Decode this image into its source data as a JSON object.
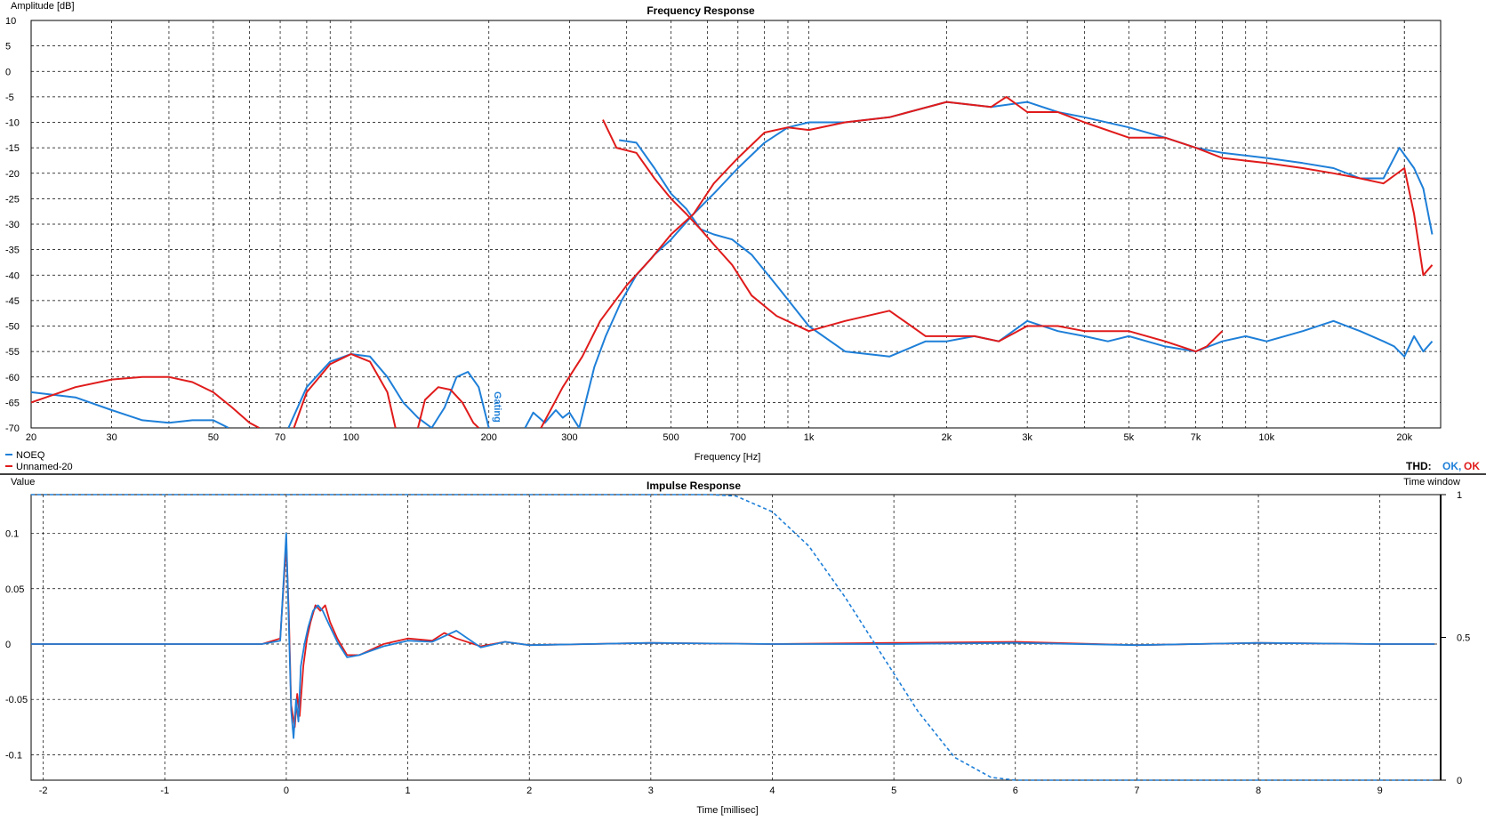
{
  "colors": {
    "noeq": "#1e7fd8",
    "unnamed": "#e01b1b",
    "grid": "#000000",
    "ok_blue": "#1e7fd8",
    "ok_red": "#e01b1b",
    "background": "#ffffff"
  },
  "chart_data": [
    {
      "type": "line",
      "title": "Frequency Response",
      "xlabel": "Frequency [Hz]",
      "ylabel": "Amplitude [dB]",
      "xscale": "log",
      "xlim": [
        20,
        24000
      ],
      "ylim": [
        -70,
        10
      ],
      "grid": true,
      "legend_position": "bottom-left",
      "xticks": [
        {
          "v": 20,
          "label": "20"
        },
        {
          "v": 30,
          "label": "30"
        },
        {
          "v": 50,
          "label": "50"
        },
        {
          "v": 70,
          "label": "70"
        },
        {
          "v": 100,
          "label": "100"
        },
        {
          "v": 200,
          "label": "200"
        },
        {
          "v": 300,
          "label": "300"
        },
        {
          "v": 500,
          "label": "500"
        },
        {
          "v": 700,
          "label": "700"
        },
        {
          "v": 1000,
          "label": "1k"
        },
        {
          "v": 2000,
          "label": "2k"
        },
        {
          "v": 3000,
          "label": "3k"
        },
        {
          "v": 5000,
          "label": "5k"
        },
        {
          "v": 7000,
          "label": "7k"
        },
        {
          "v": 10000,
          "label": "10k"
        },
        {
          "v": 20000,
          "label": "20k"
        }
      ],
      "yticks": [
        10,
        5,
        0,
        -5,
        -10,
        -15,
        -20,
        -25,
        -30,
        -35,
        -40,
        -45,
        -50,
        -55,
        -60,
        -65,
        -70
      ],
      "annotation": "Gating",
      "thd_label": "THD:",
      "thd_status": [
        "OK,",
        "OK"
      ],
      "series": [
        {
          "name": "NOEQ",
          "part": "tweeter",
          "x": [
            385,
            420,
            460,
            500,
            540,
            580,
            620,
            680,
            750,
            850,
            1000,
            1200,
            1500,
            1800,
            2000,
            2300,
            2600,
            3000,
            3500,
            4000,
            4500,
            5000,
            6000,
            7000,
            8000,
            9000,
            10000,
            12000,
            14000,
            16000,
            18000,
            19000,
            20000,
            21000,
            22000,
            23000
          ],
          "y": [
            -13.5,
            -14,
            -19,
            -24,
            -27,
            -31,
            -32,
            -33,
            -36,
            -42,
            -50,
            -55,
            -56,
            -53,
            -53,
            -52,
            -53,
            -49,
            -51,
            -52,
            -53,
            -52,
            -54,
            -55,
            -53,
            -52,
            -53,
            -51,
            -49,
            -51,
            -53,
            -54,
            -56,
            -52,
            -55,
            -53
          ]
        },
        {
          "name": "NOEQ",
          "part": "woofer-high",
          "x": [
            315,
            340,
            360,
            390,
            420,
            460,
            500,
            560,
            620,
            700,
            800,
            900,
            1000,
            1200,
            1500,
            2000,
            2500,
            3000,
            3500,
            4000,
            5000,
            6000,
            7000,
            8000,
            10000,
            12000,
            14000,
            16000,
            18000,
            19500,
            21000,
            22000,
            23000
          ],
          "y": [
            -70,
            -58,
            -52,
            -45,
            -40,
            -36,
            -33,
            -28,
            -24,
            -19,
            -14,
            -11,
            -10,
            -10,
            -9,
            -6,
            -7,
            -6,
            -8,
            -9,
            -11,
            -13,
            -15,
            -16,
            -17,
            -18,
            -19,
            -21,
            -21,
            -15,
            -19,
            -23,
            -32
          ]
        },
        {
          "name": "NOEQ",
          "part": "woofer-low",
          "x": [
            20,
            25,
            30,
            35,
            40,
            45,
            50,
            54
          ],
          "y": [
            -63,
            -64,
            -66.5,
            -68.5,
            -69,
            -68.5,
            -68.5,
            -70
          ]
        },
        {
          "name": "NOEQ",
          "part": "woofer-low",
          "x": [
            73,
            80,
            90,
            100,
            110,
            120,
            130,
            140,
            150,
            160,
            170,
            180,
            190,
            200
          ],
          "y": [
            -70,
            -62,
            -57,
            -55.5,
            -56,
            -60,
            -65,
            -68,
            -70,
            -66,
            -60,
            -59,
            -62,
            -70
          ]
        },
        {
          "name": "NOEQ",
          "part": "woofer-low",
          "x": [
            240,
            250,
            265,
            280,
            290,
            300,
            315
          ],
          "y": [
            -70,
            -67,
            -69,
            -66.5,
            -68,
            -67,
            -70
          ]
        },
        {
          "name": "Unnamed-20",
          "part": "tweeter",
          "x": [
            355,
            380,
            420,
            460,
            500,
            540,
            580,
            620,
            680,
            750,
            850,
            1000,
            1200,
            1500,
            1800,
            2000,
            2300,
            2600,
            3000,
            3500,
            4000,
            5000,
            6000,
            7000,
            7400,
            8000
          ],
          "y": [
            -9.5,
            -15,
            -16,
            -21,
            -25,
            -28,
            -31,
            -34,
            -38,
            -44,
            -48,
            -51,
            -49,
            -47,
            -52,
            -52,
            -52,
            -53,
            -50,
            -50,
            -51,
            -51,
            -53,
            -55,
            -54,
            -51
          ]
        },
        {
          "name": "Unnamed-20",
          "part": "woofer-high",
          "x": [
            260,
            290,
            320,
            350,
            400,
            450,
            500,
            560,
            620,
            700,
            800,
            900,
            1000,
            1200,
            1500,
            2000,
            2500,
            2700,
            3000,
            3500,
            4000,
            5000,
            6000,
            7000,
            8000,
            10000,
            12000,
            14000,
            16000,
            18000,
            20000,
            21000,
            22000,
            23000
          ],
          "y": [
            -70,
            -62,
            -56,
            -49,
            -42,
            -37,
            -32,
            -28,
            -22,
            -17,
            -12,
            -11,
            -11.5,
            -10,
            -9,
            -6,
            -7,
            -5,
            -8,
            -8,
            -10,
            -13,
            -13,
            -15,
            -17,
            -18,
            -19,
            -20,
            -21,
            -22,
            -19,
            -28,
            -40,
            -38
          ]
        },
        {
          "name": "Unnamed-20",
          "part": "woofer-low",
          "x": [
            20,
            25,
            30,
            35,
            40,
            45,
            50,
            55,
            60,
            63
          ],
          "y": [
            -65,
            -62,
            -60.5,
            -60,
            -60,
            -61,
            -63,
            -66,
            -69,
            -70
          ]
        },
        {
          "name": "Unnamed-20",
          "part": "woofer-low",
          "x": [
            75,
            80,
            90,
            100,
            110,
            120,
            125
          ],
          "y": [
            -70,
            -63,
            -57.5,
            -55.5,
            -57,
            -63,
            -70
          ]
        },
        {
          "name": "Unnamed-20",
          "part": "woofer-low",
          "x": [
            140,
            145,
            155,
            165,
            175,
            185,
            190
          ],
          "y": [
            -70,
            -64.5,
            -62,
            -62.5,
            -65,
            -69,
            -70
          ]
        }
      ]
    },
    {
      "type": "line",
      "title": "Impulse Response",
      "xlabel": "Time [millisec]",
      "ylabel": "Value",
      "y2label": "Time window",
      "xlim": [
        -2.1,
        9.5
      ],
      "ylim": [
        -0.123,
        0.135
      ],
      "y2lim": [
        0,
        1
      ],
      "grid": true,
      "xticks": [
        -2,
        -1,
        0,
        1,
        2,
        3,
        4,
        5,
        6,
        7,
        8,
        9
      ],
      "yticks": [
        {
          "v": 0.1,
          "label": "0.1"
        },
        {
          "v": 0.05,
          "label": "0.05"
        },
        {
          "v": 0,
          "label": "0"
        },
        {
          "v": -0.05,
          "label": "-0.05"
        },
        {
          "v": -0.1,
          "label": "-0.1"
        }
      ],
      "y2ticks": [
        {
          "v": 1,
          "label": "1"
        },
        {
          "v": 0.5,
          "label": "0.5"
        },
        {
          "v": 0,
          "label": "0"
        }
      ],
      "series": [
        {
          "name": "Unnamed-20",
          "x": [
            -2.1,
            -0.2,
            -0.05,
            0,
            0.02,
            0.04,
            0.07,
            0.09,
            0.11,
            0.14,
            0.17,
            0.2,
            0.24,
            0.28,
            0.32,
            0.36,
            0.42,
            0.5,
            0.6,
            0.7,
            0.8,
            1.0,
            1.2,
            1.3,
            1.4,
            1.6,
            1.8,
            2.0,
            3.0,
            4.0,
            5.0,
            6.0,
            7.0,
            8.0,
            9.0,
            9.45
          ],
          "y": [
            0,
            0,
            0.005,
            0.09,
            0.03,
            -0.055,
            -0.075,
            -0.045,
            -0.065,
            -0.02,
            0.005,
            0.02,
            0.035,
            0.03,
            0.035,
            0.02,
            0.005,
            -0.01,
            -0.01,
            -0.005,
            0,
            0.005,
            0.003,
            0.01,
            0.005,
            -0.002,
            0.002,
            -0.001,
            0.001,
            0,
            0.001,
            0.002,
            -0.001,
            0.001,
            0,
            0
          ]
        },
        {
          "name": "NOEQ",
          "x": [
            -2.1,
            -0.2,
            -0.05,
            0,
            0.02,
            0.04,
            0.06,
            0.08,
            0.1,
            0.12,
            0.15,
            0.18,
            0.22,
            0.26,
            0.3,
            0.35,
            0.42,
            0.5,
            0.6,
            0.7,
            0.8,
            1.0,
            1.2,
            1.4,
            1.6,
            1.8,
            2.0,
            3.0,
            4.0,
            5.0,
            6.0,
            7.0,
            8.0,
            9.0,
            9.45
          ],
          "y": [
            0,
            0,
            0.003,
            0.1,
            0.02,
            -0.06,
            -0.085,
            -0.05,
            -0.07,
            -0.02,
            0,
            0.015,
            0.03,
            0.035,
            0.03,
            0.018,
            0.002,
            -0.012,
            -0.01,
            -0.006,
            -0.002,
            0.003,
            0.002,
            0.012,
            -0.003,
            0.002,
            -0.001,
            0.001,
            0,
            0,
            0.001,
            -0.001,
            0.001,
            0,
            0
          ]
        },
        {
          "name": "Time window",
          "axis": "right",
          "dashed": true,
          "x": [
            -2.1,
            3.5,
            3.7,
            4.0,
            4.3,
            4.6,
            4.9,
            5.2,
            5.5,
            5.8,
            6.0,
            9.45
          ],
          "y": [
            1,
            1,
            0.995,
            0.94,
            0.82,
            0.64,
            0.44,
            0.24,
            0.08,
            0.01,
            0,
            0
          ]
        }
      ]
    }
  ]
}
